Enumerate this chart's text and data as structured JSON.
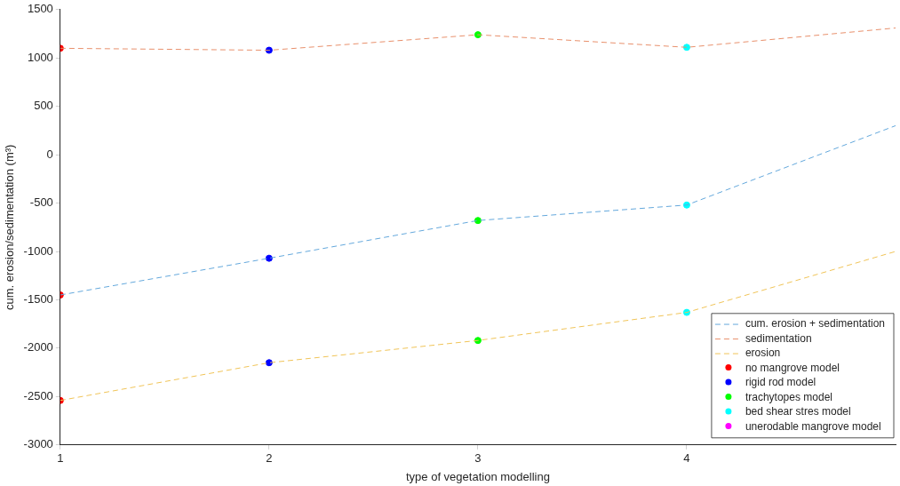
{
  "chart_data": {
    "type": "line",
    "xlabel": "type of vegetation modelling",
    "ylabel": "cum. erosion/sedimentation (m³)",
    "xlim": [
      1,
      5
    ],
    "xticks": [
      1,
      2,
      3,
      4
    ],
    "ylim": [
      -3000,
      1500
    ],
    "yticks": [
      -3000,
      -2500,
      -2000,
      -1500,
      -1000,
      -500,
      0,
      500,
      1000,
      1500
    ],
    "grid": false,
    "legend": "bottom right",
    "series": [
      {
        "name": "cum. erosion + sedimentation",
        "line_style": "dashed",
        "marker": "none",
        "color": "#64a8dc",
        "x": [
          1,
          2,
          3,
          4,
          5
        ],
        "values": [
          -1450,
          -1070,
          -680,
          -520,
          300
        ]
      },
      {
        "name": "sedimentation",
        "line_style": "dashed",
        "marker": "none",
        "color": "#e8906c",
        "x": [
          1,
          2,
          3,
          4,
          5
        ],
        "values": [
          1100,
          1080,
          1240,
          1110,
          1310
        ]
      },
      {
        "name": "erosion",
        "line_style": "dashed",
        "marker": "none",
        "color": "#f0c458",
        "x": [
          1,
          2,
          3,
          4,
          5
        ],
        "values": [
          -2540,
          -2150,
          -1920,
          -1630,
          -1000
        ]
      },
      {
        "name": "no mangrove model",
        "type": "scatter",
        "marker": "circle",
        "color": "#ff0000",
        "x": [
          1,
          1,
          1
        ],
        "values": [
          1100,
          -1450,
          -2540
        ]
      },
      {
        "name": "rigid rod model",
        "type": "scatter",
        "marker": "circle",
        "color": "#0000ff",
        "x": [
          2,
          2,
          2
        ],
        "values": [
          1080,
          -1070,
          -2150
        ]
      },
      {
        "name": "trachytopes model",
        "type": "scatter",
        "marker": "circle",
        "color": "#00ff00",
        "x": [
          3,
          3,
          3
        ],
        "values": [
          1240,
          -680,
          -1920
        ]
      },
      {
        "name": "bed shear stres model",
        "type": "scatter",
        "marker": "circle",
        "color": "#00ffff",
        "x": [
          4,
          4,
          4
        ],
        "values": [
          1110,
          -520,
          -1630
        ]
      },
      {
        "name": "unerodable mangrove model",
        "type": "scatter",
        "marker": "circle",
        "color": "#ff00ff"
      }
    ]
  }
}
